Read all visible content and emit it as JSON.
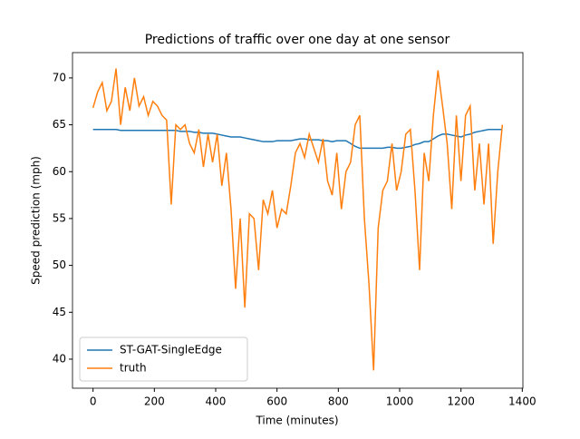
{
  "chart_data": {
    "type": "line",
    "title": "Predictions of traffic over one day at one sensor",
    "xlabel": "Time (minutes)",
    "ylabel": "Speed prediction (mph)",
    "x": [
      0,
      15,
      30,
      45,
      60,
      75,
      90,
      105,
      120,
      135,
      150,
      165,
      180,
      195,
      210,
      225,
      240,
      255,
      270,
      285,
      300,
      315,
      330,
      345,
      360,
      375,
      390,
      405,
      420,
      435,
      450,
      465,
      480,
      495,
      510,
      525,
      540,
      555,
      570,
      585,
      600,
      615,
      630,
      645,
      660,
      675,
      690,
      705,
      720,
      735,
      750,
      765,
      780,
      795,
      810,
      825,
      840,
      855,
      870,
      885,
      900,
      915,
      930,
      945,
      960,
      975,
      990,
      1005,
      1020,
      1035,
      1050,
      1065,
      1080,
      1095,
      1110,
      1125,
      1140,
      1155,
      1170,
      1185,
      1200,
      1215,
      1230,
      1245,
      1260,
      1275,
      1290,
      1305,
      1320,
      1335
    ],
    "series": [
      {
        "name": "ST-GAT-SingleEdge",
        "color": "#1f77b4",
        "values": [
          64.5,
          64.5,
          64.5,
          64.5,
          64.5,
          64.5,
          64.4,
          64.4,
          64.4,
          64.4,
          64.4,
          64.4,
          64.4,
          64.4,
          64.4,
          64.4,
          64.4,
          64.4,
          64.4,
          64.3,
          64.3,
          64.3,
          64.2,
          64.2,
          64.1,
          64.1,
          64.1,
          64.0,
          63.9,
          63.8,
          63.7,
          63.7,
          63.7,
          63.6,
          63.5,
          63.4,
          63.3,
          63.2,
          63.2,
          63.2,
          63.3,
          63.3,
          63.3,
          63.3,
          63.4,
          63.5,
          63.5,
          63.4,
          63.4,
          63.4,
          63.3,
          63.3,
          63.2,
          63.3,
          63.3,
          63.3,
          63.0,
          62.7,
          62.5,
          62.5,
          62.5,
          62.5,
          62.5,
          62.5,
          62.6,
          62.6,
          62.5,
          62.5,
          62.6,
          62.7,
          62.9,
          63.0,
          63.2,
          63.2,
          63.5,
          63.8,
          64.0,
          64.0,
          63.9,
          63.8,
          63.7,
          63.9,
          64.0,
          64.2,
          64.3,
          64.4,
          64.5,
          64.5,
          64.5,
          64.5
        ]
      },
      {
        "name": "truth",
        "color": "#ff7f0e",
        "values": [
          66.8,
          68.5,
          69.5,
          66.5,
          67.5,
          71,
          65,
          69,
          66.5,
          70,
          67,
          68,
          66,
          67.5,
          67,
          66,
          65.5,
          56.5,
          65,
          64.5,
          65,
          63,
          62,
          64.5,
          60.5,
          64,
          61,
          64,
          58.5,
          62,
          56,
          47.5,
          55,
          45.5,
          55.5,
          55,
          49.5,
          57,
          55.5,
          58,
          54,
          56,
          55.5,
          58.5,
          62,
          63,
          61.5,
          64,
          62.5,
          61,
          63.5,
          59,
          57.5,
          62,
          56,
          60,
          61,
          65,
          66,
          55,
          48,
          38.8,
          54,
          58,
          59,
          63,
          58,
          60,
          64,
          64.5,
          58,
          49.5,
          62,
          59,
          66,
          70.8,
          67,
          63,
          56,
          66,
          59,
          66,
          67,
          58,
          63,
          56.5,
          63,
          52.3,
          60,
          65
        ]
      }
    ],
    "xlim": [
      -67,
      1402
    ],
    "ylim": [
      36.9,
      72.7
    ],
    "xticks": [
      0,
      200,
      400,
      600,
      800,
      1000,
      1200,
      1400
    ],
    "yticks": [
      40,
      45,
      50,
      55,
      60,
      65,
      70
    ],
    "legend": "lower left"
  }
}
